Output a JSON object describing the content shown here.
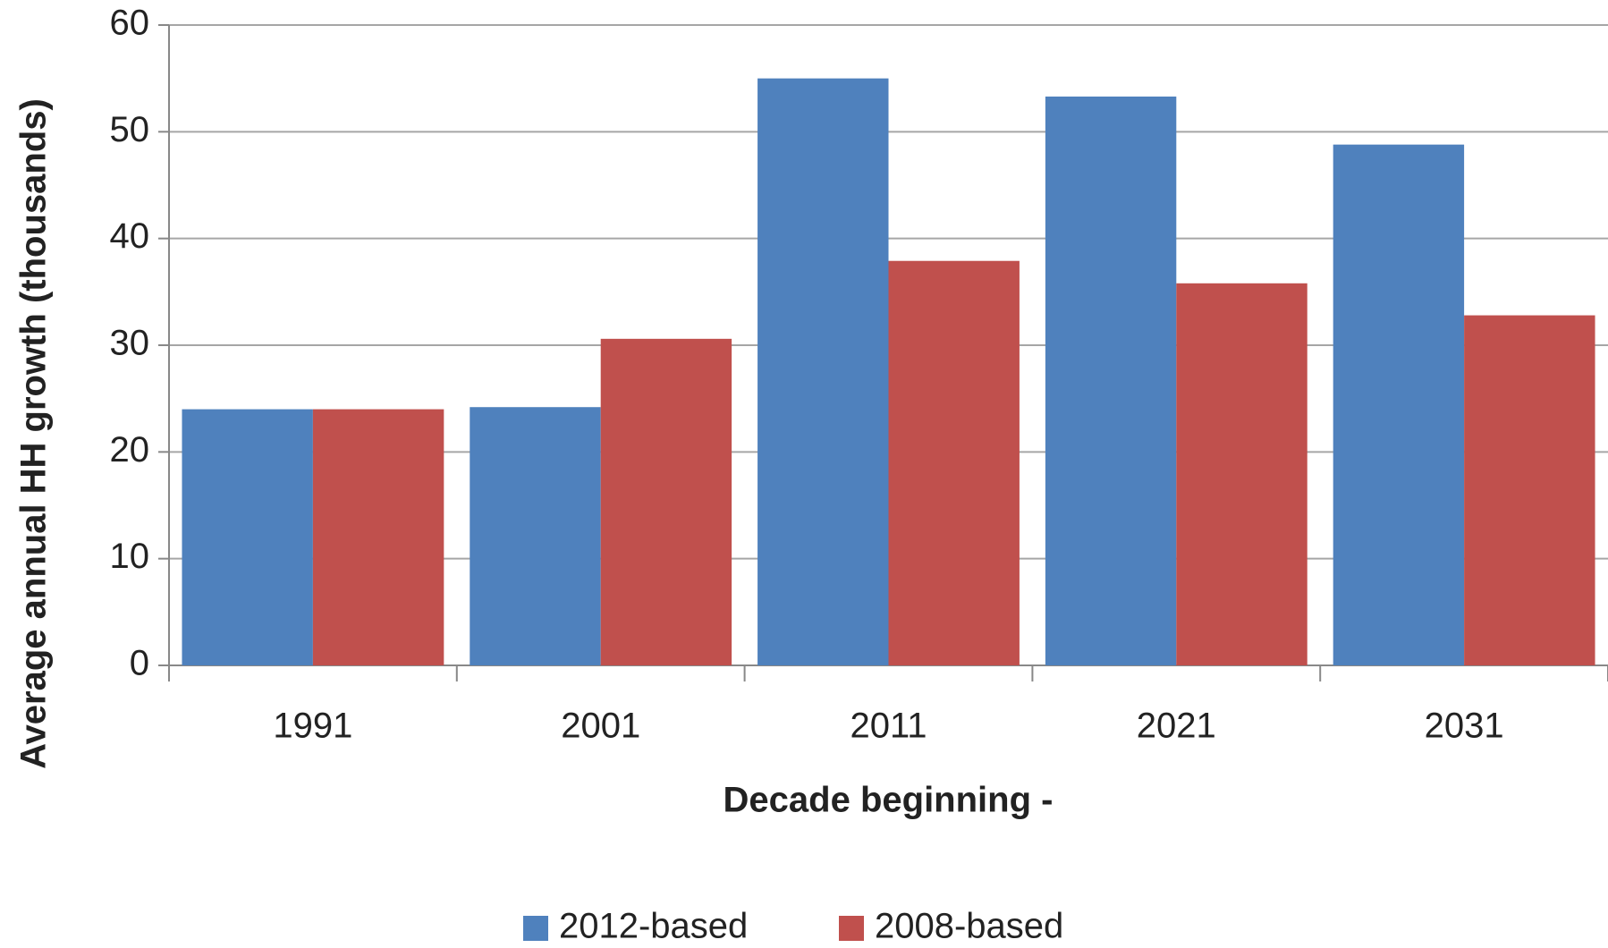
{
  "chart_data": {
    "type": "bar",
    "x_label": "Decade beginning -",
    "y_label": "Average annual HH growth (thousands)",
    "categories": [
      "1991",
      "2001",
      "2011",
      "2021",
      "2031"
    ],
    "series": [
      {
        "name": "2012-based",
        "color": "#4f81bd",
        "values": [
          24,
          24.2,
          55,
          53.3,
          48.8
        ]
      },
      {
        "name": "2008-based",
        "color": "#c0504d",
        "values": [
          24,
          30.6,
          37.9,
          35.8,
          32.8
        ]
      }
    ],
    "ylim": [
      0,
      60
    ],
    "yticks": [
      0,
      10,
      20,
      30,
      40,
      50,
      60
    ],
    "grid": true,
    "legend": "bottom"
  }
}
